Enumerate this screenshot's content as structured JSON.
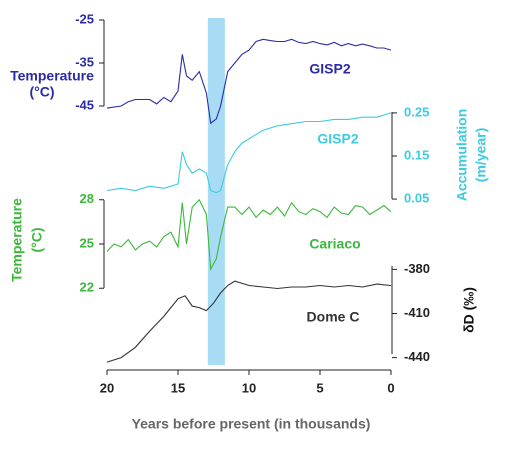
{
  "chart_data": [
    {
      "type": "line",
      "name": "GISP2",
      "color": "#2b2ba8",
      "axis_side": "left",
      "ylabel": [
        "Temperature",
        "(°C)"
      ],
      "x": [
        20,
        19,
        18.5,
        18,
        17,
        16.5,
        16,
        15.5,
        15,
        14.7,
        14.4,
        14,
        13.5,
        13,
        12.7,
        12.3,
        12,
        11.5,
        11,
        10.5,
        10,
        9.5,
        9,
        8.5,
        8,
        7.5,
        7,
        6.5,
        6,
        5.5,
        5,
        4.5,
        4,
        3.5,
        3,
        2.5,
        2,
        1.5,
        1,
        0.5,
        0
      ],
      "values": [
        -45.5,
        -45,
        -44,
        -43.5,
        -43.5,
        -44.5,
        -43,
        -44,
        -41.5,
        -33,
        -38,
        -39,
        -37,
        -42,
        -49,
        -48,
        -45,
        -37,
        -35,
        -33,
        -32,
        -30,
        -29.5,
        -29.8,
        -30,
        -30,
        -29.5,
        -30.2,
        -30.5,
        -30,
        -30.5,
        -30.8,
        -30.2,
        -31,
        -30.5,
        -31,
        -30.6,
        -31,
        -31.5,
        -31.5,
        -32
      ],
      "xlim": [
        20,
        0
      ],
      "ylim": [
        -25,
        -50
      ],
      "yticks": [
        -25,
        -35,
        -45
      ]
    },
    {
      "type": "line",
      "name": "GISP2",
      "color": "#3ccbe0",
      "axis_side": "right",
      "ylabel": [
        "Accumulation",
        "(m/year)"
      ],
      "x": [
        20,
        19,
        18,
        17,
        16,
        15.5,
        15,
        14.7,
        14.4,
        14,
        13.5,
        13,
        12.7,
        12.3,
        12,
        11.5,
        11,
        10.5,
        10,
        9,
        8,
        7,
        6,
        5,
        4,
        3,
        2,
        1,
        0
      ],
      "values": [
        0.07,
        0.075,
        0.07,
        0.08,
        0.075,
        0.08,
        0.085,
        0.16,
        0.13,
        0.11,
        0.12,
        0.11,
        0.07,
        0.065,
        0.07,
        0.13,
        0.16,
        0.18,
        0.19,
        0.21,
        0.22,
        0.225,
        0.23,
        0.23,
        0.235,
        0.235,
        0.24,
        0.24,
        0.25
      ],
      "xlim": [
        20,
        0
      ],
      "ylim": [
        0.02,
        0.28
      ],
      "yticks": [
        0.25,
        0.15,
        0.05
      ]
    },
    {
      "type": "line",
      "name": "Cariaco",
      "color": "#3cb83c",
      "axis_side": "left",
      "ylabel": [
        "Temperature",
        "(°C)"
      ],
      "x": [
        20,
        19.5,
        19,
        18.5,
        18,
        17.5,
        17,
        16.5,
        16,
        15.5,
        15,
        14.7,
        14.4,
        14,
        13.5,
        13,
        12.7,
        12.3,
        12,
        11.5,
        11,
        10.5,
        10,
        9.5,
        9,
        8.5,
        8,
        7.5,
        7,
        6.5,
        6,
        5.5,
        5,
        4.5,
        4,
        3.5,
        3,
        2.5,
        2,
        1.5,
        1,
        0.5,
        0
      ],
      "values": [
        24.5,
        25,
        24.8,
        25.3,
        24.6,
        25,
        25.2,
        24.8,
        25.5,
        25.8,
        24.8,
        27.8,
        25,
        27.5,
        28,
        27,
        23.3,
        24,
        25.5,
        27.5,
        27.5,
        27,
        27.5,
        26.8,
        27.3,
        27,
        27.5,
        26.9,
        27.8,
        27.2,
        27,
        27.4,
        27.2,
        26.8,
        27.5,
        27.1,
        27,
        27.6,
        27.5,
        27,
        27.3,
        27.6,
        27.2
      ],
      "xlim": [
        20,
        0
      ],
      "ylim": [
        29,
        21
      ],
      "yticks": [
        28,
        25,
        22
      ]
    },
    {
      "type": "line",
      "name": "Dome C",
      "color": "#333333",
      "axis_side": "right",
      "ylabel": [
        "δD (‰)"
      ],
      "x": [
        20,
        19,
        18,
        17,
        16,
        15.5,
        15,
        14.5,
        14,
        13.5,
        13,
        12.5,
        12,
        11.5,
        11,
        10,
        9,
        8,
        7,
        6,
        5,
        4,
        3,
        2,
        1,
        0
      ],
      "values": [
        -443,
        -440,
        -433,
        -422,
        -412,
        -406,
        -400,
        -398,
        -405,
        -406,
        -408,
        -403,
        -396,
        -391,
        -388,
        -391,
        -392,
        -393,
        -392,
        -392,
        -391,
        -392,
        -391,
        -392,
        -390,
        -391
      ],
      "xlim": [
        20,
        0
      ],
      "ylim": [
        -375,
        -445
      ],
      "yticks": [
        -380,
        -410,
        -440
      ],
      "xticks": [
        20,
        15,
        10,
        5,
        0
      ],
      "xlabel": "Years before present (in thousands)",
      "highlight": [
        12.9,
        11.7
      ],
      "highlight_color": "#a8dcf5"
    }
  ]
}
